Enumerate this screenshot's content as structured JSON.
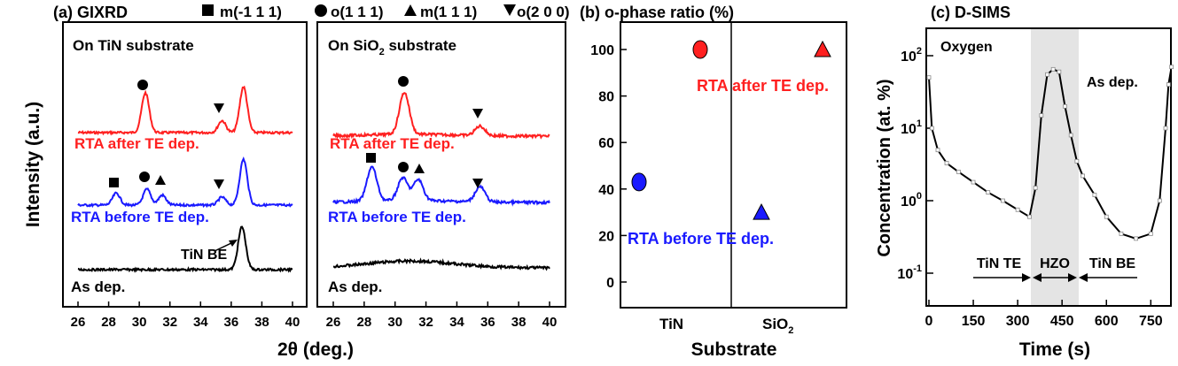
{
  "panel_a": {
    "title": "(a) GIXRD",
    "legend": [
      {
        "symbol": "square",
        "label": "m(-1 1 1)"
      },
      {
        "symbol": "circle",
        "label": "o(1 1 1)"
      },
      {
        "symbol": "triangle-up",
        "label": "m(1 1 1)"
      },
      {
        "symbol": "triangle-down",
        "label": "o(2 0 0)"
      }
    ],
    "ylabel": "Intensity (a.u.)",
    "xlabel": "2θ (deg.)",
    "ticks": [
      "26",
      "28",
      "30",
      "32",
      "34",
      "36",
      "38",
      "40"
    ],
    "left": {
      "label_main": "On TiN substrate",
      "labels": {
        "red": "RTA after TE dep.",
        "blue": "RTA before TE dep.",
        "black": "As dep."
      },
      "annotation": "TiN BE"
    },
    "right": {
      "label_main": "On SiO",
      "label_sub": "2",
      "label_tail": " substrate",
      "labels": {
        "red": "RTA after TE dep.",
        "blue": "RTA before TE dep.",
        "black": "As dep."
      }
    },
    "colors": {
      "red": "#ff2020",
      "blue": "#1a1aff",
      "black": "#000000"
    }
  },
  "panel_b": {
    "title": "(b) o-phase ratio (%)",
    "xlabel": "Substrate",
    "cat_left": "TiN",
    "cat_right_main": "SiO",
    "cat_right_sub": "2",
    "ticks": [
      "0",
      "20",
      "40",
      "60",
      "80",
      "100"
    ],
    "label_red": "RTA after TE dep.",
    "label_blue": "RTA before TE dep."
  },
  "panel_c": {
    "title": "(c) D-SIMS",
    "ylabel": "Concentration (at. %)",
    "xlabel": "Time (s)",
    "xticks": [
      "0",
      "150",
      "300",
      "450",
      "600",
      "750"
    ],
    "yticks": [
      {
        "base": "10",
        "exp": "2"
      },
      {
        "base": "10",
        "exp": "1"
      },
      {
        "base": "10",
        "exp": "0"
      },
      {
        "base": "10",
        "exp": "-1"
      }
    ],
    "inset_label": "Oxygen",
    "peak_label": "As dep.",
    "regions": [
      "TiN TE",
      "HZO",
      "TiN BE"
    ]
  },
  "chart_data": [
    {
      "type": "line",
      "title": "(a) GIXRD — On TiN substrate",
      "xlabel": "2θ (deg.)",
      "ylabel": "Intensity (a.u.)",
      "xlim": [
        26,
        40
      ],
      "series": [
        {
          "name": "RTA after TE dep.",
          "peaks": [
            {
              "x": 30.4,
              "h": 1.0
            },
            {
              "x": 35.4,
              "h": 0.3
            },
            {
              "x": 36.8,
              "h": 1.15
            }
          ]
        },
        {
          "name": "RTA before TE dep.",
          "peaks": [
            {
              "x": 28.5,
              "h": 0.3
            },
            {
              "x": 30.5,
              "h": 0.4
            },
            {
              "x": 31.5,
              "h": 0.25
            },
            {
              "x": 35.4,
              "h": 0.2
            },
            {
              "x": 36.8,
              "h": 1.15
            }
          ]
        },
        {
          "name": "As dep.",
          "peaks": [
            {
              "x": 36.7,
              "h": 1.1
            }
          ]
        }
      ]
    },
    {
      "type": "line",
      "title": "(a) GIXRD — On SiO2 substrate",
      "xlabel": "2θ (deg.)",
      "xlim": [
        26,
        40
      ],
      "series": [
        {
          "name": "RTA after TE dep.",
          "peaks": [
            {
              "x": 30.6,
              "h": 1.1
            },
            {
              "x": 35.5,
              "h": 0.25
            }
          ]
        },
        {
          "name": "RTA before TE dep.",
          "peaks": [
            {
              "x": 28.5,
              "h": 0.9
            },
            {
              "x": 30.5,
              "h": 0.6
            },
            {
              "x": 31.5,
              "h": 0.55
            },
            {
              "x": 35.5,
              "h": 0.4
            }
          ]
        },
        {
          "name": "As dep.",
          "peaks": []
        }
      ]
    },
    {
      "type": "scatter",
      "title": "(b) o-phase ratio (%)",
      "xlabel": "Substrate",
      "categories": [
        "TiN",
        "SiO2"
      ],
      "ylim": [
        -5,
        110
      ],
      "series": [
        {
          "name": "RTA after TE dep.",
          "values": [
            100,
            100
          ]
        },
        {
          "name": "RTA before TE dep.",
          "values": [
            43,
            30
          ]
        }
      ]
    },
    {
      "type": "line",
      "title": "(c) D-SIMS",
      "xlabel": "Time (s)",
      "ylabel": "Concentration (at. %)",
      "xlim": [
        0,
        820
      ],
      "ylim_log10": [
        -1.5,
        2.3
      ],
      "series": [
        {
          "name": "Oxygen",
          "x": [
            0,
            10,
            30,
            60,
            100,
            150,
            200,
            250,
            300,
            340,
            360,
            380,
            400,
            420,
            440,
            460,
            480,
            500,
            520,
            560,
            600,
            650,
            700,
            750,
            780,
            800,
            810,
            820
          ],
          "y": [
            50,
            10,
            5,
            3.3,
            2.5,
            1.8,
            1.3,
            1.0,
            0.75,
            0.6,
            1.5,
            15,
            55,
            65,
            60,
            20,
            8,
            3.5,
            2.2,
            1.2,
            0.6,
            0.35,
            0.3,
            0.35,
            1.0,
            10,
            40,
            70
          ]
        }
      ]
    }
  ]
}
